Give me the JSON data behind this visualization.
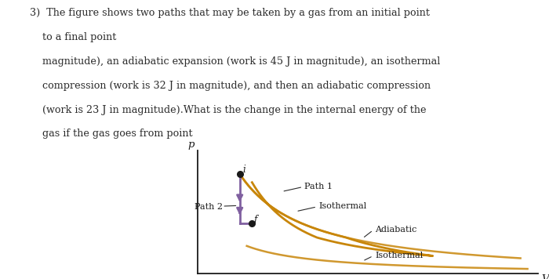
{
  "background_color": "#ffffff",
  "text_color": "#2b2b2b",
  "orange_color": "#c8860a",
  "purple_color": "#8060a0",
  "xlabel": "V",
  "ylabel": "p",
  "point_i_label": "i",
  "point_f_label": "f",
  "path1_label": "Path 1",
  "path2_label": "Path 2",
  "isothermal_label1": "Isothermal",
  "isothermal_label2": "Isothermal",
  "adiabatic_label": "Adiabatic",
  "fig_width": 7.0,
  "fig_height": 3.56,
  "dpi": 100
}
